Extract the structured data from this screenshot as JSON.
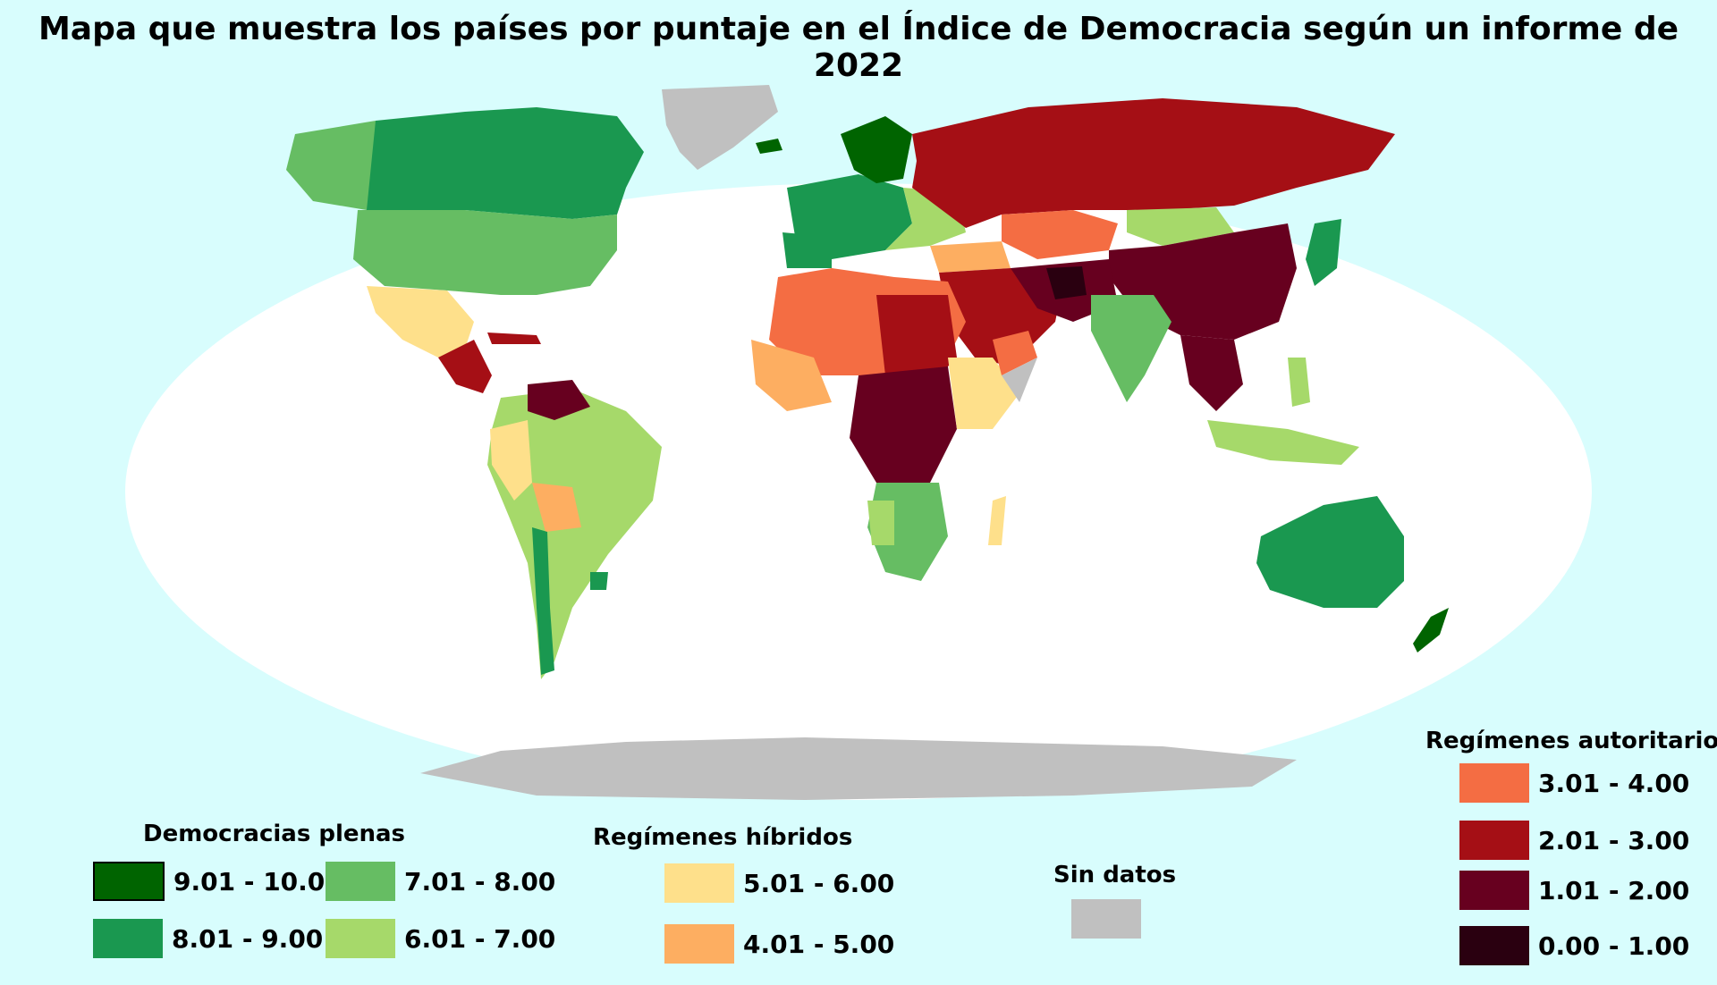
{
  "title": "Mapa que muestra los países por puntaje en el Índice de Democracia según un informe de 2022",
  "legend": {
    "full": {
      "heading": "Democracias plenas",
      "items": [
        {
          "label": "9.01 - 10.00",
          "color": "#006400"
        },
        {
          "label": "8.01 - 9.00",
          "color": "#1a9850"
        },
        {
          "label": "7.01 - 8.00",
          "color": "#66bd63"
        },
        {
          "label": "6.01 - 7.00",
          "color": "#a6d96a"
        }
      ]
    },
    "hybrid": {
      "heading": "Regímenes híbridos",
      "items": [
        {
          "label": "5.01 - 6.00",
          "color": "#fee08b"
        },
        {
          "label": "4.01 - 5.00",
          "color": "#fdae61"
        }
      ]
    },
    "nodata": {
      "heading": "Sin datos",
      "color": "#c0c0c0"
    },
    "authoritarian": {
      "heading": "Regímenes autoritarios",
      "items": [
        {
          "label": "3.01 - 4.00",
          "color": "#f46d43"
        },
        {
          "label": "2.01 - 3.00",
          "color": "#a50f15"
        },
        {
          "label": "1.01 - 2.00",
          "color": "#67001f"
        },
        {
          "label": "0.00 - 1.00",
          "color": "#2a0010"
        }
      ]
    }
  }
}
